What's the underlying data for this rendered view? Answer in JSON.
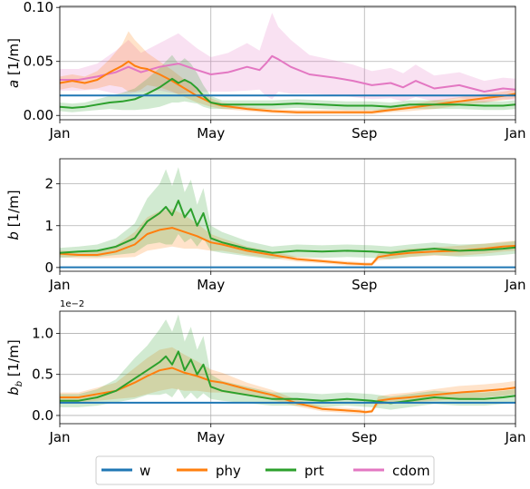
{
  "figure": {
    "legend": [
      {
        "label": "w",
        "color": "#1f77b4"
      },
      {
        "label": "phy",
        "color": "#ff7f0e"
      },
      {
        "label": "prt",
        "color": "#2ca02c"
      },
      {
        "label": "cdom",
        "color": "#e377c2"
      }
    ]
  },
  "chart_data": [
    {
      "type": "line",
      "ylabel": "a [1/m]",
      "ylabel_var": "a",
      "ylabel_unit": " [1/m]",
      "xlim": [
        0,
        365
      ],
      "ylim": [
        -0.004,
        0.101
      ],
      "x_ticks": [
        {
          "v": 0,
          "label": "Jan"
        },
        {
          "v": 121,
          "label": "May"
        },
        {
          "v": 244,
          "label": "Sep"
        },
        {
          "v": 365,
          "label": "Jan"
        }
      ],
      "y_ticks": [
        {
          "v": 0.0,
          "label": "0.00"
        },
        {
          "v": 0.05,
          "label": "0.05"
        },
        {
          "v": 0.1,
          "label": "0.10"
        }
      ],
      "series": [
        {
          "name": "cdom",
          "color": "#e377c2",
          "x": [
            0,
            15,
            30,
            45,
            55,
            65,
            80,
            95,
            110,
            121,
            135,
            150,
            160,
            165,
            170,
            175,
            185,
            200,
            220,
            235,
            250,
            265,
            275,
            285,
            300,
            320,
            340,
            355,
            365
          ],
          "y": [
            0.033,
            0.033,
            0.036,
            0.04,
            0.045,
            0.04,
            0.045,
            0.048,
            0.042,
            0.038,
            0.04,
            0.045,
            0.042,
            0.048,
            0.055,
            0.052,
            0.045,
            0.038,
            0.035,
            0.032,
            0.028,
            0.03,
            0.026,
            0.032,
            0.025,
            0.028,
            0.022,
            0.025,
            0.024
          ],
          "band": [
            0.01,
            0.01,
            0.012,
            0.02,
            0.025,
            0.018,
            0.022,
            0.028,
            0.02,
            0.016,
            0.018,
            0.022,
            0.018,
            0.03,
            0.04,
            0.03,
            0.025,
            0.018,
            0.016,
            0.015,
            0.013,
            0.014,
            0.013,
            0.015,
            0.012,
            0.012,
            0.01,
            0.01,
            0.01
          ]
        },
        {
          "name": "phy",
          "color": "#ff7f0e",
          "x": [
            0,
            10,
            20,
            30,
            40,
            50,
            55,
            60,
            65,
            70,
            80,
            90,
            100,
            110,
            121,
            130,
            150,
            170,
            190,
            210,
            230,
            250,
            265,
            280,
            300,
            320,
            340,
            355,
            365
          ],
          "y": [
            0.03,
            0.032,
            0.03,
            0.033,
            0.04,
            0.046,
            0.05,
            0.046,
            0.044,
            0.043,
            0.038,
            0.032,
            0.025,
            0.018,
            0.012,
            0.009,
            0.006,
            0.004,
            0.003,
            0.003,
            0.003,
            0.003,
            0.005,
            0.007,
            0.01,
            0.013,
            0.016,
            0.018,
            0.02
          ],
          "band": [
            0.006,
            0.006,
            0.006,
            0.008,
            0.012,
            0.02,
            0.028,
            0.024,
            0.02,
            0.015,
            0.012,
            0.01,
            0.008,
            0.006,
            0.004,
            0.003,
            0.002,
            0.002,
            0.002,
            0.002,
            0.002,
            0.002,
            0.002,
            0.003,
            0.004,
            0.004,
            0.004,
            0.004,
            0.004
          ]
        },
        {
          "name": "prt",
          "color": "#2ca02c",
          "x": [
            0,
            10,
            20,
            30,
            40,
            50,
            60,
            70,
            80,
            90,
            95,
            100,
            105,
            110,
            115,
            121,
            130,
            150,
            170,
            190,
            210,
            230,
            250,
            265,
            280,
            300,
            320,
            340,
            355,
            365
          ],
          "y": [
            0.008,
            0.007,
            0.008,
            0.01,
            0.012,
            0.013,
            0.015,
            0.02,
            0.026,
            0.034,
            0.03,
            0.033,
            0.03,
            0.025,
            0.018,
            0.012,
            0.01,
            0.01,
            0.01,
            0.011,
            0.01,
            0.009,
            0.009,
            0.008,
            0.01,
            0.01,
            0.01,
            0.009,
            0.009,
            0.01
          ],
          "band": [
            0.004,
            0.004,
            0.004,
            0.005,
            0.006,
            0.008,
            0.01,
            0.014,
            0.018,
            0.022,
            0.018,
            0.02,
            0.018,
            0.014,
            0.01,
            0.006,
            0.004,
            0.004,
            0.004,
            0.004,
            0.004,
            0.004,
            0.004,
            0.004,
            0.004,
            0.004,
            0.004,
            0.004,
            0.004,
            0.004
          ]
        },
        {
          "name": "w",
          "color": "#1f77b4",
          "x": [
            0,
            365
          ],
          "y": [
            0.0185,
            0.0185
          ]
        }
      ]
    },
    {
      "type": "line",
      "ylabel": "b [1/m]",
      "ylabel_var": "b",
      "ylabel_unit": " [1/m]",
      "xlim": [
        0,
        365
      ],
      "ylim": [
        -0.09,
        2.6
      ],
      "x_ticks": [
        {
          "v": 0,
          "label": "Jan"
        },
        {
          "v": 121,
          "label": "May"
        },
        {
          "v": 244,
          "label": "Sep"
        },
        {
          "v": 365,
          "label": "Jan"
        }
      ],
      "y_ticks": [
        {
          "v": 0,
          "label": "0"
        },
        {
          "v": 1,
          "label": "1"
        },
        {
          "v": 2,
          "label": "2"
        }
      ],
      "series": [
        {
          "name": "phy",
          "color": "#ff7f0e",
          "x": [
            0,
            15,
            30,
            45,
            60,
            70,
            80,
            90,
            100,
            110,
            121,
            130,
            150,
            170,
            190,
            210,
            230,
            245,
            250,
            255,
            265,
            280,
            300,
            320,
            340,
            355,
            365
          ],
          "y": [
            0.33,
            0.3,
            0.3,
            0.38,
            0.55,
            0.8,
            0.9,
            0.95,
            0.85,
            0.75,
            0.6,
            0.55,
            0.4,
            0.3,
            0.2,
            0.15,
            0.1,
            0.08,
            0.08,
            0.25,
            0.3,
            0.35,
            0.38,
            0.4,
            0.45,
            0.5,
            0.52
          ],
          "band": [
            0.08,
            0.08,
            0.08,
            0.15,
            0.3,
            0.4,
            0.45,
            0.45,
            0.4,
            0.3,
            0.2,
            0.15,
            0.1,
            0.08,
            0.06,
            0.05,
            0.05,
            0.04,
            0.04,
            0.08,
            0.1,
            0.1,
            0.1,
            0.12,
            0.12,
            0.12,
            0.12
          ]
        },
        {
          "name": "prt",
          "color": "#2ca02c",
          "x": [
            0,
            15,
            30,
            45,
            60,
            70,
            80,
            85,
            90,
            95,
            100,
            105,
            110,
            115,
            121,
            130,
            150,
            170,
            190,
            210,
            230,
            250,
            265,
            280,
            300,
            320,
            340,
            355,
            365
          ],
          "y": [
            0.35,
            0.38,
            0.4,
            0.5,
            0.7,
            1.1,
            1.3,
            1.45,
            1.25,
            1.6,
            1.2,
            1.4,
            1.0,
            1.3,
            0.7,
            0.6,
            0.45,
            0.35,
            0.4,
            0.38,
            0.4,
            0.38,
            0.35,
            0.4,
            0.45,
            0.4,
            0.42,
            0.45,
            0.48
          ],
          "band": [
            0.12,
            0.12,
            0.15,
            0.2,
            0.35,
            0.55,
            0.7,
            0.9,
            0.7,
            0.8,
            0.6,
            0.7,
            0.5,
            0.6,
            0.3,
            0.25,
            0.18,
            0.15,
            0.15,
            0.15,
            0.15,
            0.15,
            0.15,
            0.15,
            0.15,
            0.15,
            0.15,
            0.15,
            0.15
          ]
        },
        {
          "name": "w",
          "color": "#1f77b4",
          "x": [
            0,
            365
          ],
          "y": [
            0.005,
            0.005
          ]
        }
      ]
    },
    {
      "type": "line",
      "ylabel": "b_b [1/m]",
      "ylabel_var": "b",
      "ylabel_sub": "b",
      "ylabel_unit": " [1/m]",
      "offset_text": "1e−2",
      "xlim": [
        0,
        365
      ],
      "ylim": [
        -0.1,
        1.27
      ],
      "x_ticks": [
        {
          "v": 0,
          "label": "Jan"
        },
        {
          "v": 121,
          "label": "May"
        },
        {
          "v": 244,
          "label": "Sep"
        },
        {
          "v": 365,
          "label": "Jan"
        }
      ],
      "y_ticks": [
        {
          "v": 0,
          "label": "0.0"
        },
        {
          "v": 0.5,
          "label": "0.5"
        },
        {
          "v": 1.0,
          "label": "1.0"
        }
      ],
      "series": [
        {
          "name": "phy",
          "color": "#ff7f0e",
          "x": [
            0,
            15,
            30,
            45,
            60,
            70,
            80,
            90,
            100,
            110,
            121,
            130,
            150,
            170,
            190,
            210,
            230,
            240,
            245,
            250,
            255,
            265,
            280,
            300,
            320,
            340,
            355,
            365
          ],
          "y": [
            0.22,
            0.22,
            0.26,
            0.3,
            0.4,
            0.48,
            0.55,
            0.58,
            0.52,
            0.48,
            0.42,
            0.4,
            0.32,
            0.25,
            0.15,
            0.08,
            0.06,
            0.05,
            0.04,
            0.05,
            0.18,
            0.2,
            0.22,
            0.25,
            0.28,
            0.3,
            0.32,
            0.34
          ],
          "band": [
            0.06,
            0.06,
            0.08,
            0.1,
            0.18,
            0.22,
            0.25,
            0.25,
            0.22,
            0.18,
            0.14,
            0.12,
            0.08,
            0.06,
            0.04,
            0.03,
            0.03,
            0.03,
            0.02,
            0.02,
            0.05,
            0.06,
            0.06,
            0.07,
            0.08,
            0.08,
            0.08,
            0.08
          ]
        },
        {
          "name": "prt",
          "color": "#2ca02c",
          "x": [
            0,
            15,
            30,
            45,
            60,
            70,
            80,
            85,
            90,
            95,
            100,
            105,
            110,
            115,
            121,
            130,
            150,
            170,
            190,
            210,
            230,
            250,
            265,
            280,
            300,
            320,
            340,
            355,
            365
          ],
          "y": [
            0.18,
            0.18,
            0.22,
            0.3,
            0.45,
            0.55,
            0.65,
            0.72,
            0.62,
            0.78,
            0.55,
            0.68,
            0.5,
            0.62,
            0.35,
            0.3,
            0.25,
            0.2,
            0.2,
            0.18,
            0.2,
            0.18,
            0.15,
            0.18,
            0.22,
            0.2,
            0.2,
            0.22,
            0.24
          ],
          "band": [
            0.08,
            0.08,
            0.1,
            0.14,
            0.25,
            0.3,
            0.4,
            0.45,
            0.4,
            0.45,
            0.35,
            0.4,
            0.3,
            0.35,
            0.15,
            0.12,
            0.1,
            0.08,
            0.08,
            0.08,
            0.08,
            0.08,
            0.08,
            0.08,
            0.08,
            0.08,
            0.08,
            0.08,
            0.08
          ]
        },
        {
          "name": "w",
          "color": "#1f77b4",
          "x": [
            0,
            365
          ],
          "y": [
            0.155,
            0.155
          ]
        }
      ]
    }
  ]
}
